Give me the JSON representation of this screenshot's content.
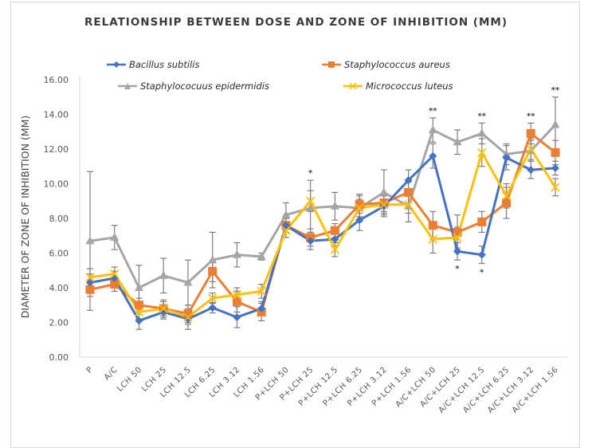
{
  "chart_data": {
    "type": "line",
    "title": "RELATIONSHIP BETWEEN DOSE AND ZONE OF INHIBITION (MM)",
    "xlabel": "",
    "ylabel": "DIAMETER OF ZONE OF INHIBITION (MM)",
    "ylim": [
      0,
      16
    ],
    "yticks": [
      "0.00",
      "2.00",
      "4.00",
      "6.00",
      "8.00",
      "10.00",
      "12.00",
      "14.00",
      "16.00"
    ],
    "grid": false,
    "legend_position": "top",
    "categories": [
      "P",
      "A/C",
      "LCH 50",
      "LCH 25",
      "LCH 12.5",
      "LCH 6.25",
      "LCH 3.12",
      "LCH 1.56",
      "P+LCH 50",
      "P+LCH 25",
      "P+LCH 12.5",
      "P+LCH 6.25",
      "P+LCH 3.12",
      "P+LCH 1.56",
      "A/C+LCH 50",
      "A/C+LCH 25",
      "A/C+LCH 12.5",
      "A/C+LCH 6.25",
      "A/C+LCH 3.12",
      "A/C+LCH 1.56"
    ],
    "series": [
      {
        "name": "Bacillus subtilis",
        "color": "#4472c4",
        "marker": "diamond",
        "values": [
          4.3,
          4.55,
          2.1,
          2.6,
          2.2,
          2.85,
          2.3,
          2.8,
          7.6,
          6.7,
          6.8,
          7.9,
          8.7,
          10.2,
          11.6,
          6.1,
          5.9,
          11.5,
          10.8,
          10.9
        ],
        "errors": [
          0.5,
          0.4,
          0.5,
          0.4,
          0.6,
          0.3,
          0.6,
          0.4,
          0.4,
          0.5,
          0.4,
          0.6,
          0.6,
          0.6,
          0.7,
          0.5,
          0.5,
          0.7,
          0.5,
          0.4
        ]
      },
      {
        "name": "Staphylococcus aureus",
        "color": "#ed7d31",
        "marker": "square",
        "values": [
          3.9,
          4.2,
          3.0,
          2.8,
          2.5,
          4.95,
          3.2,
          2.6,
          7.6,
          6.9,
          7.3,
          8.8,
          8.9,
          9.5,
          7.6,
          7.2,
          7.8,
          8.9,
          12.9,
          11.8
        ],
        "errors": [
          0.4,
          0.4,
          0.4,
          0.5,
          0.5,
          0.6,
          0.6,
          0.5,
          0.4,
          0.5,
          0.4,
          0.5,
          0.5,
          0.6,
          0.8,
          1.0,
          0.6,
          0.9,
          0.6,
          0.7
        ]
      },
      {
        "name": "Staphylococuus epidermidis",
        "color": "#a5a5a5",
        "marker": "triangle",
        "values": [
          6.7,
          6.9,
          4.0,
          4.7,
          4.3,
          5.6,
          5.9,
          5.8,
          8.2,
          8.6,
          8.7,
          8.6,
          9.5,
          8.7,
          13.1,
          12.4,
          12.9,
          11.7,
          11.9,
          13.4
        ],
        "errors": [
          4.0,
          0.7,
          1.3,
          1.0,
          1.3,
          1.6,
          0.7,
          0.2,
          0.7,
          1.6,
          0.8,
          0.8,
          1.3,
          0.9,
          0.7,
          0.7,
          0.6,
          0.6,
          0.6,
          1.6
        ]
      },
      {
        "name": "Micrococcus luteus",
        "color": "#ffc000",
        "marker": "x",
        "values": [
          4.6,
          4.8,
          2.6,
          2.8,
          2.3,
          3.4,
          3.6,
          3.8,
          7.3,
          9.0,
          6.2,
          8.6,
          8.8,
          8.8,
          6.8,
          6.9,
          11.8,
          9.3,
          12.0,
          9.8
        ],
        "errors": [
          0.5,
          0.4,
          0.4,
          0.4,
          0.4,
          0.3,
          0.4,
          0.4,
          0.4,
          0.6,
          0.4,
          0.5,
          0.5,
          0.5,
          0.8,
          0.6,
          0.8,
          0.7,
          0.6,
          0.5
        ]
      }
    ],
    "annotations": [
      {
        "category": "P+LCH 25",
        "text": "*",
        "position": "above"
      },
      {
        "category": "A/C+LCH 50",
        "text": "**",
        "position": "above"
      },
      {
        "category": "A/C+LCH 25",
        "text": "*",
        "position": "below"
      },
      {
        "category": "A/C+LCH 12.5",
        "text": "**",
        "position": "above"
      },
      {
        "category": "A/C+LCH 12.5",
        "text": "*",
        "position": "below"
      },
      {
        "category": "A/C+LCH 3.12",
        "text": "**",
        "position": "above"
      },
      {
        "category": "A/C+LCH 1.56",
        "text": "**",
        "position": "above"
      }
    ]
  }
}
